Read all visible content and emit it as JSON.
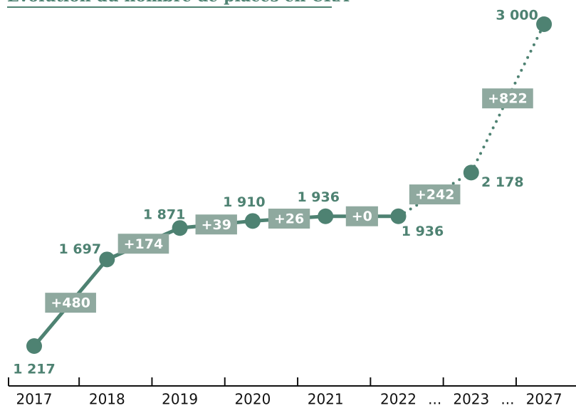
{
  "chart_data": {
    "type": "line",
    "title": "Évolution du nombre de places en CRA",
    "categories": [
      "2017",
      "2018",
      "2019",
      "2020",
      "2021",
      "2022",
      "2023",
      "2027"
    ],
    "separators": [
      "...",
      "..."
    ],
    "series": [
      {
        "name": "Places en CRA",
        "color": "#4e8272",
        "values": [
          1217,
          1697,
          1871,
          1910,
          1936,
          1936,
          2178,
          3000
        ],
        "value_labels": [
          "1 217",
          "1 697",
          "1 871",
          "1 910",
          "1 936",
          "1 936",
          "2 178",
          "3 000"
        ]
      }
    ],
    "annotations": [
      "+480",
      "+174",
      "+39",
      "+26",
      "+0",
      "+242",
      "+822"
    ],
    "annotation_color": "#8fa99f",
    "line_styles": [
      "solid",
      "solid",
      "solid",
      "solid",
      "solid",
      "dotted",
      "dotted"
    ],
    "ylim": [
      1217,
      3000
    ]
  }
}
